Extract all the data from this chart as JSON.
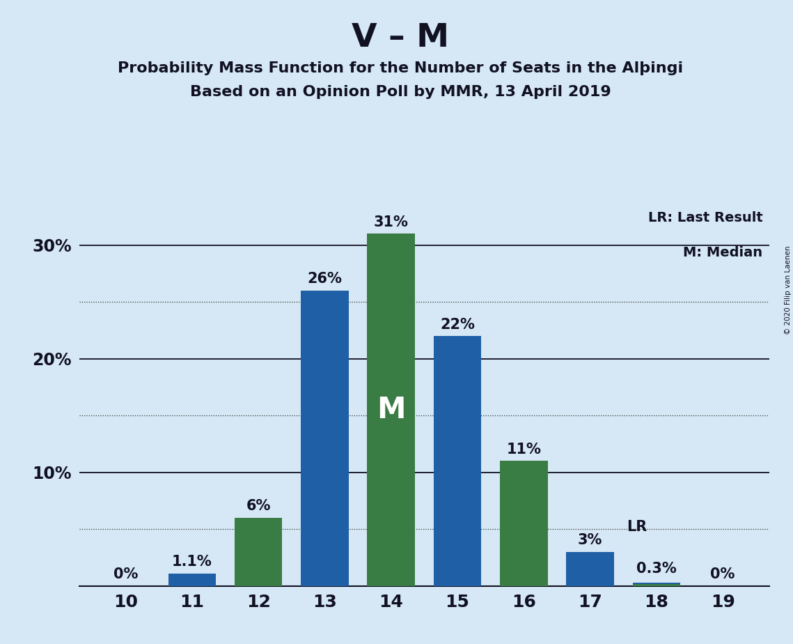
{
  "title_main": "V – M",
  "title_sub1": "Probability Mass Function for the Number of Seats in the Alþingi",
  "title_sub2": "Based on an Opinion Poll by MMR, 13 April 2019",
  "seats": [
    10,
    11,
    12,
    13,
    14,
    15,
    16,
    17,
    18,
    19
  ],
  "blue_values": [
    0.0,
    1.1,
    0.0,
    26.0,
    0.0,
    22.0,
    0.0,
    3.0,
    0.3,
    0.0
  ],
  "green_values": [
    0.0,
    0.0,
    6.0,
    0.0,
    31.0,
    0.0,
    11.0,
    0.0,
    0.15,
    0.0
  ],
  "blue_color": "#1f5fa6",
  "green_color": "#3a7d44",
  "background_color": "#d6e8f5",
  "bar_width": 0.72,
  "ylim": [
    0,
    34
  ],
  "ytick_majors": [
    0,
    10,
    20,
    30
  ],
  "ytick_minors": [
    5,
    15,
    25
  ],
  "ytick_labels": [
    "",
    "10%",
    "20%",
    "30%"
  ],
  "median_seat": 14,
  "lr_seat": 17,
  "legend_lr": "LR: Last Result",
  "legend_m": "M: Median",
  "copyright": "© 2020 Filip van Laenen",
  "label_fontsize": 15,
  "title_main_fontsize": 34,
  "title_sub_fontsize": 16
}
